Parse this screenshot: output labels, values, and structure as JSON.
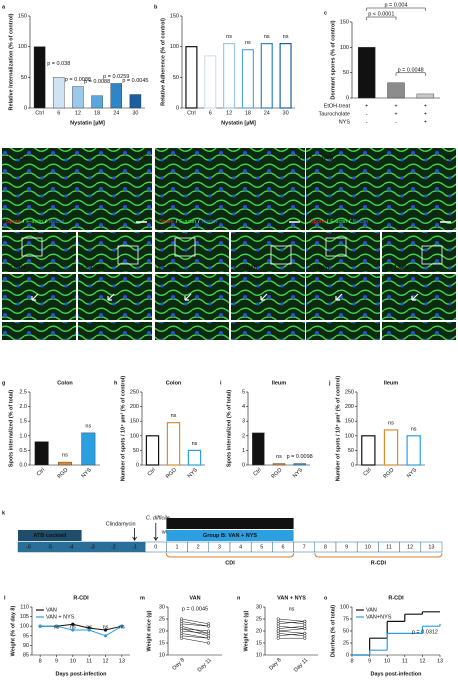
{
  "chart_data": [
    {
      "label": "a",
      "type": "bar",
      "ylabel": "Relative Internalization (% of control)",
      "xlabel": "Nystatin [µM]",
      "categories": [
        "Ctrl",
        "6",
        "12",
        "18",
        "24",
        "30"
      ],
      "values": [
        100,
        50,
        35,
        20,
        40,
        22
      ],
      "colors": [
        "#111111",
        "#cfe3f5",
        "#9cc8ec",
        "#5aa6de",
        "#2e86c9",
        "#1d5f9e"
      ],
      "ylim": [
        0,
        150
      ],
      "yticks": [
        0,
        50,
        100,
        150
      ],
      "annotations": [
        null,
        "p = 0.038",
        "p = 0.0088",
        "p = 0.0088",
        "p = 0.0259",
        "p = 0.0045"
      ]
    },
    {
      "label": "b",
      "type": "bar",
      "ylabel": "Relative Adherence (% of control)",
      "xlabel": "Nystatin [µM]",
      "categories": [
        "Ctrl",
        "6",
        "12",
        "18",
        "24",
        "30"
      ],
      "values": [
        100,
        85,
        105,
        95,
        105,
        105
      ],
      "colors": [
        "#ffffff",
        "#cfe3f5",
        "#9cc8ec",
        "#5aa6de",
        "#2e86c9",
        "#1d5f9e"
      ],
      "fill": false,
      "ylim": [
        0,
        150
      ],
      "yticks": [
        0,
        50,
        100,
        150
      ],
      "annotations": [
        null,
        null,
        "ns",
        "ns",
        "ns",
        "ns"
      ]
    },
    {
      "label": "c",
      "type": "bar",
      "ylabel": "Dormant spores (% of control)",
      "categories": [
        null,
        null,
        null
      ],
      "values": [
        100,
        30,
        8
      ],
      "colors": [
        "#111111",
        "#8c8c8c",
        "#c8c8c8"
      ],
      "ylim": [
        0,
        150
      ],
      "yticks": [
        0,
        50,
        100,
        150
      ],
      "comparisons": [
        "p = 0.004",
        "p < 0.0001",
        "p = 0.0048"
      ],
      "conditions": [
        {
          "name": "EtOH-treat",
          "signs": [
            "+",
            "+",
            "+"
          ]
        },
        {
          "name": "Taurocholate",
          "signs": [
            "-",
            "+",
            "+"
          ]
        },
        {
          "name": "NYS",
          "signs": [
            "-",
            "-",
            "+"
          ]
        }
      ]
    },
    {
      "label": "g",
      "type": "bar",
      "title": "Colon",
      "ylabel": "Spots internalized (% of total)",
      "categories": [
        "Ctrl",
        "RGD",
        "NYS"
      ],
      "values": [
        0.8,
        0.1,
        1.1
      ],
      "colors": [
        "#111111",
        "#e08a2c",
        "#2b9fe0"
      ],
      "rotate_xticks": true,
      "ylim": [
        0,
        2.5
      ],
      "yticks": [
        {
          "value": 0,
          "label": "0.0"
        },
        0.5,
        {
          "value": 1,
          "label": "1.0"
        },
        1.5,
        {
          "value": 2,
          "label": "2.0"
        },
        2.5
      ],
      "annotations": [
        null,
        "ns",
        "ns"
      ]
    },
    {
      "label": "h",
      "type": "bar",
      "title": "Colon",
      "ylabel": "Number of spots / 10⁴ µm² (% of control)",
      "categories": [
        "Ctrl",
        "RGD",
        "NYS"
      ],
      "values": [
        100,
        145,
        50
      ],
      "colors": [
        "#111111",
        "#e08a2c",
        "#2b9fe0"
      ],
      "fill": false,
      "rotate_xticks": true,
      "ylim": [
        0,
        250
      ],
      "yticks": [
        0,
        50,
        100,
        150,
        200,
        250
      ],
      "annotations": [
        null,
        "ns",
        "ns"
      ]
    },
    {
      "label": "i",
      "type": "bar",
      "title": "Ileum",
      "ylabel": "Spots internalized (% of total)",
      "categories": [
        "Ctrl",
        "RGD",
        "NYS"
      ],
      "values": [
        2.2,
        0.1,
        0.1
      ],
      "colors": [
        "#111111",
        "#e08a2c",
        "#2b9fe0"
      ],
      "rotate_xticks": true,
      "ylim": [
        0,
        5
      ],
      "yticks": [
        0,
        1,
        2,
        3,
        4,
        5
      ],
      "annotations": [
        null,
        "ns",
        "p = 0.0098"
      ]
    },
    {
      "label": "j",
      "type": "bar",
      "title": "Ileum",
      "ylabel": "Number of spots / 10⁴ µm² (% of control)",
      "categories": [
        "Ctrl",
        "RGD",
        "NYS"
      ],
      "values": [
        100,
        120,
        100
      ],
      "colors": [
        "#111111",
        "#e08a2c",
        "#2b9fe0"
      ],
      "fill": false,
      "rotate_xticks": true,
      "ylim": [
        0,
        250
      ],
      "yticks": [
        0,
        50,
        100,
        150,
        200,
        250
      ],
      "annotations": [
        null,
        "ns",
        "ns"
      ]
    },
    {
      "label": "l",
      "type": "line",
      "title": "R-CDI",
      "ylabel": "Weight (% of day 8)",
      "xlabel": "Days post-infection",
      "x": [
        8,
        9,
        10,
        11,
        12,
        13
      ],
      "xlim": [
        7.5,
        13.5
      ],
      "xticks": [
        8,
        9,
        10,
        11,
        12,
        13
      ],
      "ylim": [
        85,
        110
      ],
      "yticks": [
        85,
        90,
        95,
        100,
        105,
        110
      ],
      "series": [
        {
          "name": "VAN",
          "color": "#111111",
          "values": [
            100,
            100,
            101,
            99,
            98,
            100
          ]
        },
        {
          "name": "VAN + NYS",
          "color": "#2b9fe0",
          "values": [
            100,
            100,
            98,
            98,
            95,
            100
          ]
        }
      ],
      "annotations": [
        null,
        "ns",
        "ns",
        "ns",
        "ns",
        "ns"
      ]
    },
    {
      "label": "m",
      "type": "slope",
      "title": "VAN",
      "title_color": "#111111",
      "color": "#111111",
      "ylabel": "Weight mice (g)",
      "categories": [
        "Day 8",
        "Day 11"
      ],
      "ylim": [
        10,
        30
      ],
      "yticks": [
        10,
        15,
        20,
        25,
        30
      ],
      "pairs": [
        [
          25,
          23
        ],
        [
          24,
          22
        ],
        [
          23,
          22
        ],
        [
          22,
          19
        ],
        [
          21,
          20
        ],
        [
          21,
          18
        ],
        [
          20,
          19
        ],
        [
          19,
          17
        ],
        [
          18,
          17
        ],
        [
          17,
          15
        ]
      ],
      "annotation": "p = 0.0045"
    },
    {
      "label": "n",
      "type": "slope",
      "title": "VAN + NYS",
      "title_color": "#2b9fe0",
      "color": "#111111",
      "ylabel": "Weight mice (g)",
      "categories": [
        "Day 8",
        "Day 11"
      ],
      "ylim": [
        10,
        30
      ],
      "yticks": [
        10,
        15,
        20,
        25,
        30
      ],
      "pairs": [
        [
          25,
          24
        ],
        [
          24,
          23
        ],
        [
          23,
          24
        ],
        [
          22,
          21
        ],
        [
          21,
          22
        ],
        [
          20,
          19
        ],
        [
          20,
          21
        ],
        [
          19,
          18
        ],
        [
          18,
          19
        ],
        [
          17,
          17
        ]
      ],
      "annotation": "ns"
    },
    {
      "label": "o",
      "type": "line",
      "drawstyle": "steps-post",
      "title": "R-CDI",
      "ylabel": "Diarrhea (% of total)",
      "xlabel": "Days post-infection",
      "x": [
        8,
        9,
        10,
        11,
        12,
        13
      ],
      "xlim": [
        8,
        13
      ],
      "xticks": [
        8,
        9,
        10,
        11,
        12,
        13
      ],
      "ylim": [
        0,
        100
      ],
      "yticks": [
        0,
        25,
        50,
        75,
        100
      ],
      "series": [
        {
          "name": "VAN",
          "color": "#111111",
          "values": [
            0,
            35,
            70,
            85,
            90,
            90
          ]
        },
        {
          "name": "VAN+NYS",
          "color": "#2b9fe0",
          "values": [
            0,
            10,
            45,
            45,
            60,
            65
          ]
        }
      ],
      "annotation": "p = 0.0312"
    }
  ],
  "figure": {
    "microscopy": [
      {
        "label": "d",
        "condition": "Ctrl",
        "view": "3D",
        "z": [
          "z = 0µm",
          "z = 10µm"
        ]
      },
      {
        "label": "e",
        "condition": "RGD",
        "view": "3D",
        "z": [
          "z = 6µm",
          "z = 11µm"
        ]
      },
      {
        "label": "f",
        "condition": "NYS",
        "view": "3D",
        "z": [
          "z = 4µm",
          "z = 13µm"
        ]
      }
    ],
    "stain_legend": [
      {
        "text": "Spore",
        "color": "#ff3030"
      },
      {
        "text": "F-actin",
        "color": "#40ff40"
      },
      {
        "text": "Nuclei",
        "color": "#4a7bff"
      }
    ],
    "stain_separator": "/",
    "timeline": {
      "label": "k",
      "cocktail": "ATB cocktail",
      "clindamycin": "Clindamycin",
      "infection": "C. difficile",
      "strain": "wt",
      "group_a": "Group A: VAN",
      "group_b": "Group B: VAN + NYS",
      "phase1": "CDI",
      "phase2": "R-CDI",
      "days": [
        "-6",
        "-5",
        "-4",
        "-3",
        "-2",
        "-1",
        "0",
        "1",
        "2",
        "3",
        "4",
        "5",
        "6",
        "7",
        "8",
        "9",
        "10",
        "11",
        "12",
        "13"
      ]
    }
  }
}
